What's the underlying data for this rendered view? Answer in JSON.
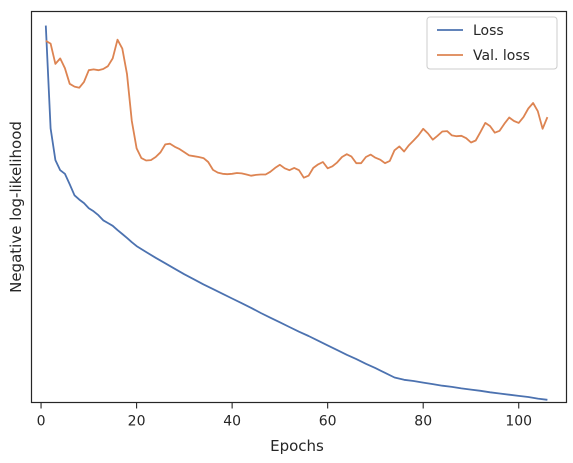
{
  "chart_data": {
    "type": "line",
    "xlabel": "Epochs",
    "ylabel": "Negative log-likelihood",
    "xlim": [
      -2,
      110
    ],
    "ylim": [
      0,
      1
    ],
    "xticks": [
      0,
      20,
      40,
      60,
      80,
      100
    ],
    "grid": false,
    "legend_position": "top-right",
    "y_tick_labels_shown": false,
    "series": [
      {
        "name": "Loss",
        "color": "#4c72b0",
        "x": [
          1,
          2,
          3,
          4,
          5,
          6,
          7,
          8,
          9,
          10,
          11,
          12,
          13,
          14,
          15,
          16,
          17,
          18,
          19,
          20,
          22,
          24,
          26,
          28,
          30,
          32,
          34,
          36,
          38,
          40,
          42,
          44,
          46,
          48,
          50,
          52,
          54,
          56,
          58,
          60,
          62,
          64,
          66,
          68,
          70,
          72,
          74,
          76,
          78,
          80,
          82,
          84,
          86,
          88,
          90,
          92,
          94,
          96,
          98,
          100,
          102,
          104,
          106
        ],
        "y": [
          0.964,
          0.701,
          0.62,
          0.594,
          0.585,
          0.558,
          0.53,
          0.519,
          0.51,
          0.497,
          0.489,
          0.479,
          0.466,
          0.459,
          0.452,
          0.441,
          0.431,
          0.421,
          0.41,
          0.4,
          0.385,
          0.37,
          0.356,
          0.342,
          0.328,
          0.315,
          0.302,
          0.29,
          0.278,
          0.266,
          0.254,
          0.242,
          0.229,
          0.217,
          0.205,
          0.193,
          0.181,
          0.17,
          0.158,
          0.146,
          0.134,
          0.122,
          0.111,
          0.099,
          0.088,
          0.076,
          0.064,
          0.058,
          0.055,
          0.051,
          0.047,
          0.043,
          0.04,
          0.036,
          0.033,
          0.03,
          0.026,
          0.023,
          0.02,
          0.017,
          0.014,
          0.01,
          0.007
        ]
      },
      {
        "name": "Val. loss",
        "color": "#dd8452",
        "x": [
          1,
          2,
          3,
          4,
          5,
          6,
          7,
          8,
          9,
          10,
          11,
          12,
          13,
          14,
          15,
          16,
          17,
          18,
          19,
          20,
          21,
          22,
          23,
          24,
          25,
          26,
          27,
          28,
          29,
          30,
          31,
          32,
          33,
          34,
          35,
          36,
          37,
          38,
          39,
          40,
          41,
          42,
          43,
          44,
          45,
          46,
          47,
          48,
          49,
          50,
          51,
          52,
          53,
          54,
          55,
          56,
          57,
          58,
          59,
          60,
          61,
          62,
          63,
          64,
          65,
          66,
          67,
          68,
          69,
          70,
          71,
          72,
          73,
          74,
          75,
          76,
          77,
          78,
          79,
          80,
          81,
          82,
          83,
          84,
          85,
          86,
          87,
          88,
          89,
          90,
          91,
          92,
          93,
          94,
          95,
          96,
          97,
          98,
          99,
          100,
          101,
          102,
          103,
          104,
          105,
          106
        ],
        "y": [
          0.925,
          0.918,
          0.866,
          0.88,
          0.855,
          0.815,
          0.808,
          0.805,
          0.82,
          0.85,
          0.852,
          0.85,
          0.853,
          0.86,
          0.88,
          0.928,
          0.905,
          0.84,
          0.72,
          0.65,
          0.625,
          0.619,
          0.62,
          0.628,
          0.64,
          0.66,
          0.662,
          0.654,
          0.648,
          0.64,
          0.632,
          0.63,
          0.628,
          0.625,
          0.615,
          0.595,
          0.588,
          0.585,
          0.584,
          0.585,
          0.587,
          0.586,
          0.583,
          0.58,
          0.582,
          0.583,
          0.583,
          0.59,
          0.6,
          0.608,
          0.599,
          0.594,
          0.6,
          0.594,
          0.575,
          0.58,
          0.6,
          0.609,
          0.615,
          0.599,
          0.604,
          0.614,
          0.628,
          0.635,
          0.629,
          0.612,
          0.612,
          0.628,
          0.634,
          0.626,
          0.621,
          0.612,
          0.618,
          0.645,
          0.655,
          0.642,
          0.658,
          0.67,
          0.683,
          0.7,
          0.688,
          0.672,
          0.682,
          0.693,
          0.694,
          0.683,
          0.681,
          0.682,
          0.676,
          0.665,
          0.67,
          0.692,
          0.715,
          0.707,
          0.69,
          0.695,
          0.713,
          0.729,
          0.72,
          0.715,
          0.73,
          0.752,
          0.766,
          0.745,
          0.7,
          0.73
        ]
      }
    ]
  }
}
